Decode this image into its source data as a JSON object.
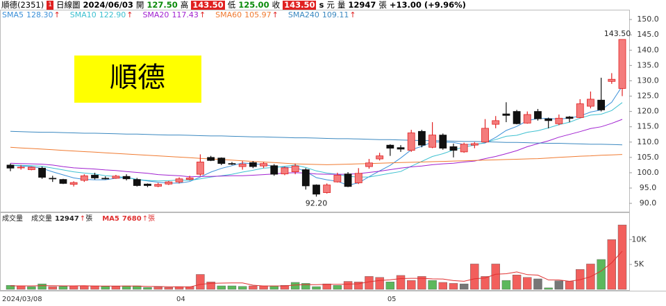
{
  "header": {
    "name": "順德(2351)",
    "badge": "1",
    "chart_kind": "日線圖",
    "date": "2024/06/03",
    "open_label": "開",
    "open": "127.50",
    "high_label": "高",
    "high": "143.50",
    "low_label": "低",
    "low": "125.00",
    "close_label": "收",
    "close": "143.50",
    "currency_icon": "s",
    "currency": "元",
    "volume_label": "量",
    "volume": "12947",
    "volume_unit": "張",
    "change": "+13.00 (+9.96%)"
  },
  "chart_data": [
    {
      "type": "candlestick",
      "title": "順德",
      "open": [
        102.5,
        101.8,
        101,
        101.5,
        98.2,
        97.8,
        96.2,
        97.5,
        99.2,
        98.2,
        98.2,
        98.8,
        97.8,
        96.3,
        95.6,
        96.3,
        97,
        97.8,
        99.5,
        105,
        104.8,
        103,
        102,
        103.3,
        102.2,
        102.3,
        99.6,
        100.3,
        101,
        96,
        93.5,
        97,
        99.6,
        96.7,
        102,
        104.5,
        109,
        108.2,
        107.3,
        113.5,
        108.3,
        112.3,
        108.5,
        106.8,
        109,
        110,
        115.8,
        119.2,
        120,
        116.2,
        120,
        117.6,
        116,
        118.2,
        118,
        121.7,
        123.7,
        129.8,
        127.5
      ],
      "high": [
        103,
        102.5,
        102,
        102,
        99,
        98,
        97.2,
        99.5,
        100,
        98.8,
        99.3,
        99.5,
        98.3,
        96.5,
        96.7,
        97.3,
        98.5,
        99,
        106,
        105.5,
        105,
        103.5,
        103.8,
        103.8,
        103.5,
        102.8,
        102,
        103,
        101.5,
        96.2,
        96.5,
        100,
        100.2,
        101.5,
        104.5,
        106.5,
        109.3,
        109,
        114,
        114,
        116.5,
        112.8,
        109.5,
        109.8,
        110,
        117.5,
        118.5,
        123,
        120.5,
        120,
        120.8,
        118,
        119,
        118.5,
        124,
        126.5,
        131,
        132.5,
        143.5
      ],
      "low": [
        100.5,
        101,
        100.8,
        98,
        97,
        96.3,
        95.5,
        97,
        97.8,
        97.8,
        98,
        97.5,
        95.5,
        95.3,
        95.3,
        96,
        96.5,
        97.5,
        99,
        103.8,
        102.5,
        102.5,
        101,
        101.5,
        101.5,
        99,
        99.2,
        99.5,
        94.5,
        92.2,
        93.2,
        96.8,
        95.3,
        96.3,
        101.3,
        104,
        105.5,
        106.8,
        106.8,
        108.3,
        108,
        107.5,
        105,
        106.5,
        108,
        109.8,
        114.5,
        116.5,
        115.8,
        116,
        117,
        114.5,
        115.5,
        116.5,
        117.8,
        121,
        120,
        129,
        125
      ],
      "close": [
        101.5,
        101.8,
        101.8,
        98.5,
        98,
        96.5,
        96.8,
        99,
        98.3,
        98.1,
        98.9,
        98,
        95.8,
        95.8,
        96.2,
        97,
        98,
        98.3,
        103.5,
        104,
        103,
        102.8,
        102.8,
        102,
        103,
        99.5,
        101.6,
        102.2,
        95.7,
        93,
        96,
        99.2,
        95.5,
        99.8,
        103.2,
        105.5,
        108,
        107.7,
        113,
        109,
        112.3,
        108,
        107.3,
        109.3,
        109.5,
        114.5,
        117,
        118.7,
        116,
        119,
        117.6,
        117,
        117.8,
        117.7,
        122.5,
        124,
        120.5,
        130.5,
        143.5
      ],
      "high_labels": [
        null,
        null,
        null,
        null,
        null,
        null,
        null,
        null,
        null,
        null,
        null,
        null,
        null,
        null,
        null,
        null,
        null,
        null,
        null,
        null,
        null,
        null,
        null,
        null,
        null,
        null,
        null,
        null,
        null,
        null,
        null,
        null,
        null,
        null,
        null,
        null,
        null,
        null,
        null,
        null,
        null,
        null,
        null,
        null,
        null,
        null,
        null,
        null,
        null,
        null,
        null,
        null,
        null,
        null,
        null,
        null,
        null,
        null,
        "143.50"
      ],
      "low_labels": [
        null,
        null,
        null,
        null,
        null,
        null,
        null,
        null,
        null,
        null,
        null,
        null,
        null,
        null,
        null,
        null,
        null,
        null,
        null,
        null,
        null,
        null,
        null,
        null,
        null,
        null,
        null,
        null,
        null,
        "92.20",
        null,
        null,
        null,
        null,
        null,
        null,
        null,
        null,
        null,
        null,
        null,
        null,
        null,
        null,
        null,
        null,
        null,
        null,
        null,
        null,
        null,
        null,
        null,
        null,
        null,
        null,
        null,
        null,
        null
      ],
      "up_color": "#f47c7c",
      "up_line": "#e02020",
      "down_color": "#111111",
      "trend_color": "#e02020",
      "series": [
        {
          "name": "SMA5",
          "color": "#3a8fd8",
          "value_label": "128.30",
          "trend": "↑",
          "values": [
            102.5,
            102.2,
            102,
            101.4,
            100.3,
            99.3,
            98.3,
            97.8,
            97.7,
            97.7,
            98.2,
            98.5,
            97.8,
            97.3,
            96.9,
            96.6,
            96.6,
            97.1,
            98.6,
            100.2,
            101.4,
            102.3,
            103.2,
            102.9,
            102.7,
            102,
            101.8,
            101.7,
            100.4,
            98.4,
            97.7,
            97.2,
            95.9,
            96.7,
            98.7,
            100.6,
            102.4,
            104.8,
            107.5,
            108.6,
            110,
            110,
            109.9,
            109.2,
            109.3,
            109.7,
            111.5,
            113.8,
            115.1,
            117,
            117.7,
            117.7,
            117.5,
            117.8,
            118.5,
            119.8,
            120.5,
            123,
            128.3
          ]
        },
        {
          "name": "SMA10",
          "color": "#3cc0d0",
          "value_label": "122.90",
          "trend": "↑",
          "values": [
            102.5,
            102.4,
            102.3,
            102.1,
            101.5,
            100.9,
            100.3,
            99.9,
            99.6,
            99,
            98.8,
            98.4,
            97.8,
            97.5,
            97.3,
            97.4,
            97.6,
            97.5,
            98,
            98.6,
            99,
            99.5,
            100.2,
            100.8,
            101.5,
            101.7,
            102.1,
            102.5,
            101.7,
            100.6,
            99.9,
            99.5,
            98.8,
            98.6,
            98.6,
            99.2,
            99.8,
            100.4,
            102.1,
            103.7,
            105.3,
            106.2,
            107.4,
            108.4,
            109,
            109.9,
            110.8,
            111.9,
            112.2,
            113.2,
            113.7,
            114.6,
            115.7,
            116.5,
            117.8,
            118.8,
            119.1,
            120.3,
            122.9
          ]
        },
        {
          "name": "SMA20",
          "color": "#a020d0",
          "value_label": "117.43",
          "trend": "↑",
          "values": [
            103.1,
            103,
            102.9,
            102.8,
            102.5,
            102,
            101.6,
            101.4,
            101.2,
            100.9,
            100.7,
            100.4,
            100.1,
            99.8,
            99.4,
            99.2,
            99,
            98.7,
            98.8,
            98.8,
            98.9,
            99,
            99,
            99.2,
            99.4,
            99.6,
            99.9,
            100,
            99.9,
            99.6,
            99.5,
            99.5,
            99.5,
            99.7,
            100.1,
            100.5,
            101,
            101.5,
            101.9,
            102.2,
            102.6,
            102.9,
            103.1,
            103.5,
            103.8,
            104.6,
            105.3,
            106.2,
            107.2,
            108.5,
            109.5,
            110.4,
            111.6,
            112.5,
            113.4,
            114.4,
            115,
            116.1,
            117.43
          ]
        },
        {
          "name": "SMA60",
          "color": "#f07a30",
          "value_label": "105.97",
          "trend": "↑",
          "values": [
            108.3,
            108.1,
            107.9,
            107.7,
            107.5,
            107.3,
            107.1,
            106.9,
            106.7,
            106.5,
            106.3,
            106.1,
            105.9,
            105.7,
            105.5,
            105.3,
            105.1,
            104.9,
            104.7,
            104.5,
            104.3,
            104.1,
            103.9,
            103.7,
            103.5,
            103.3,
            103.1,
            102.9,
            102.8,
            102.7,
            102.6,
            102.7,
            102.8,
            102.9,
            103.0,
            103.1,
            103.2,
            103.3,
            103.4,
            103.5,
            103.6,
            103.7,
            103.8,
            103.9,
            104.0,
            104.1,
            104.2,
            104.3,
            104.4,
            104.5,
            104.6,
            104.8,
            105.0,
            105.2,
            105.4,
            105.5,
            105.7,
            105.8,
            105.97
          ]
        },
        {
          "name": "SMA240",
          "color": "#3a88c0",
          "value_label": "109.11",
          "trend": "↑",
          "values": [
            113.5,
            113.4,
            113.3,
            113.2,
            113.2,
            113.1,
            113.0,
            112.9,
            112.9,
            112.8,
            112.7,
            112.6,
            112.6,
            112.5,
            112.4,
            112.3,
            112.3,
            112.2,
            112.1,
            112.0,
            112.0,
            111.9,
            111.8,
            111.7,
            111.7,
            111.6,
            111.5,
            111.4,
            111.4,
            111.3,
            111.2,
            111.1,
            111.1,
            111.0,
            110.9,
            110.8,
            110.8,
            110.7,
            110.6,
            110.5,
            110.5,
            110.4,
            110.3,
            110.2,
            110.2,
            110.1,
            110.0,
            109.9,
            109.9,
            109.8,
            109.7,
            109.6,
            109.6,
            109.5,
            109.4,
            109.3,
            109.3,
            109.2,
            109.11
          ]
        }
      ],
      "ylim": [
        87.3,
        153.2
      ],
      "yticks": [
        {
          "value": 90,
          "label": "90.0"
        },
        {
          "value": 95,
          "label": "95.0"
        },
        {
          "value": 100,
          "label": "100.0"
        },
        {
          "value": 105,
          "label": "105.0"
        },
        {
          "value": 110,
          "label": "110.0"
        },
        {
          "value": 115,
          "label": "115.0"
        },
        {
          "value": 120,
          "label": "120.0"
        },
        {
          "value": 125,
          "label": "125.0"
        },
        {
          "value": 130,
          "label": "130.0"
        },
        {
          "value": 135,
          "label": "135.0"
        },
        {
          "value": 140,
          "label": "140.0"
        },
        {
          "value": 145,
          "label": "145.0"
        },
        {
          "value": 150,
          "label": "150.0"
        }
      ],
      "grid": false
    },
    {
      "type": "bar",
      "label": "成交量",
      "legend_name": "成交量",
      "trend": "↑",
      "unit": "張",
      "trend_color": "#e02020",
      "categories": [
        "2024/03/08",
        null,
        null,
        null,
        null,
        null,
        null,
        null,
        null,
        null,
        null,
        null,
        null,
        null,
        null,
        null,
        "04",
        null,
        null,
        null,
        null,
        null,
        null,
        null,
        null,
        null,
        null,
        null,
        null,
        null,
        null,
        null,
        null,
        null,
        null,
        null,
        "05",
        null,
        null,
        null,
        null,
        null,
        null,
        null,
        null,
        null,
        null,
        null,
        null,
        null,
        null,
        null,
        null,
        null,
        null,
        null,
        null,
        null,
        null
      ],
      "values": [
        800,
        700,
        550,
        1100,
        550,
        600,
        700,
        700,
        700,
        600,
        600,
        700,
        700,
        400,
        450,
        400,
        550,
        550,
        3000,
        1500,
        700,
        700,
        600,
        700,
        700,
        700,
        800,
        1400,
        1200,
        550,
        1100,
        800,
        1600,
        1500,
        2600,
        2400,
        1500,
        2800,
        1800,
        2600,
        1800,
        1400,
        1200,
        1100,
        5100,
        2600,
        5100,
        1800,
        2900,
        2400,
        2100,
        300,
        1700,
        1600,
        4000,
        5100,
        6000,
        10000,
        12947
      ],
      "colors": [
        "#5cb85c",
        "#f25f5c",
        "#5cb85c",
        "#5cb85c",
        "#f25f5c",
        "#5cb85c",
        "#f25f5c",
        "#f25f5c",
        "#f25f5c",
        "#5cb85c",
        "#f25f5c",
        "#5cb85c",
        "#5cb85c",
        "#5cb85c",
        "#f25f5c",
        "#f25f5c",
        "#f25f5c",
        "#f25f5c",
        "#f25f5c",
        "#f25f5c",
        "#5cb85c",
        "#5cb85c",
        "#5cb85c",
        "#f25f5c",
        "#f25f5c",
        "#5cb85c",
        "#f25f5c",
        "#5cb85c",
        "#5cb85c",
        "#5cb85c",
        "#f25f5c",
        "#5cb85c",
        "#f25f5c",
        "#f25f5c",
        "#f25f5c",
        "#f25f5c",
        "#5cb85c",
        "#f25f5c",
        "#f25f5c",
        "#f25f5c",
        "#5cb85c",
        "#f25f5c",
        "#f25f5c",
        "#777777",
        "#f25f5c",
        "#f25f5c",
        "#f25f5c",
        "#5cb85c",
        "#f25f5c",
        "#f25f5c",
        "#777777",
        "#5cb85c",
        "#777777",
        "#f25f5c",
        "#f25f5c",
        "#f25f5c",
        "#5cb85c",
        "#f25f5c",
        "#f25f5c"
      ],
      "series": [
        {
          "name": "MA5",
          "color": "#e03030",
          "trend": "↑",
          "unit": "張",
          "values": [
            700,
            700,
            700,
            720,
            740,
            700,
            700,
            730,
            650,
            660,
            660,
            660,
            660,
            600,
            570,
            530,
            500,
            470,
            990,
            1200,
            1260,
            1290,
            1300,
            840,
            680,
            680,
            700,
            860,
            960,
            930,
            1010,
            1010,
            1050,
            1110,
            1520,
            1780,
            1920,
            2160,
            2220,
            2220,
            2100,
            2080,
            1760,
            1620,
            2120,
            2280,
            3020,
            3140,
            3500,
            2960,
            2860,
            1900,
            1880,
            1620,
            1940,
            2540,
            3680,
            5340,
            7680
          ]
        }
      ],
      "ylim": [
        0,
        13800
      ],
      "yticks": [
        {
          "value": 5000,
          "label": "5K"
        },
        {
          "value": 10000,
          "label": "10K"
        }
      ]
    }
  ]
}
